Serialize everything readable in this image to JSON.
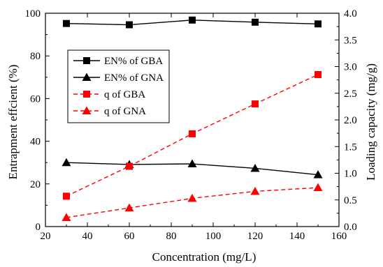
{
  "chart_data": {
    "type": "line",
    "x": [
      30,
      60,
      90,
      120,
      150
    ],
    "xlabel": "Concentration (mg/L)",
    "ylabel_left": "Entrapment effcient (%)",
    "ylabel_right": "Loading capacity (mg/g)",
    "xlim": [
      20,
      160
    ],
    "ylim_left": [
      0,
      100
    ],
    "ylim_right": [
      0,
      4.0
    ],
    "x_ticks": [
      20,
      40,
      60,
      80,
      100,
      120,
      140,
      160
    ],
    "x_tick_labels": [
      "20",
      "40",
      "60",
      "80",
      "100",
      "120",
      "140",
      "160"
    ],
    "y_left_ticks": [
      0,
      20,
      40,
      60,
      80,
      100
    ],
    "y_left_tick_labels": [
      "0",
      "20",
      "40",
      "60",
      "80",
      "100"
    ],
    "y_right_ticks": [
      0,
      0.5,
      1.0,
      1.5,
      2.0,
      2.5,
      3.0,
      3.5,
      4.0
    ],
    "y_right_tick_labels": [
      "0.0",
      "0.5",
      "1.0",
      "1.5",
      "2.0",
      "2.5",
      "3.0",
      "3.5",
      "4.0"
    ],
    "grid": false,
    "legend_position": "left, upper-middle",
    "series": [
      {
        "name": "EN% of GBA",
        "axis": "left",
        "marker": "square",
        "color": "#000000",
        "dash": false,
        "values": [
          95.2,
          94.6,
          96.8,
          95.8,
          95.0
        ]
      },
      {
        "name": "EN% of GNA",
        "axis": "left",
        "marker": "triangle",
        "color": "#000000",
        "dash": false,
        "values": [
          30.0,
          29.1,
          29.4,
          27.3,
          24.3
        ]
      },
      {
        "name": "q of GBA",
        "axis": "right",
        "marker": "square",
        "color": "#ff0000",
        "dash": true,
        "values": [
          0.57,
          1.13,
          1.74,
          2.3,
          2.85
        ]
      },
      {
        "name": "q of GNA",
        "axis": "right",
        "marker": "triangle",
        "color": "#ff0000",
        "dash": true,
        "values": [
          0.17,
          0.35,
          0.53,
          0.66,
          0.73
        ]
      }
    ]
  }
}
